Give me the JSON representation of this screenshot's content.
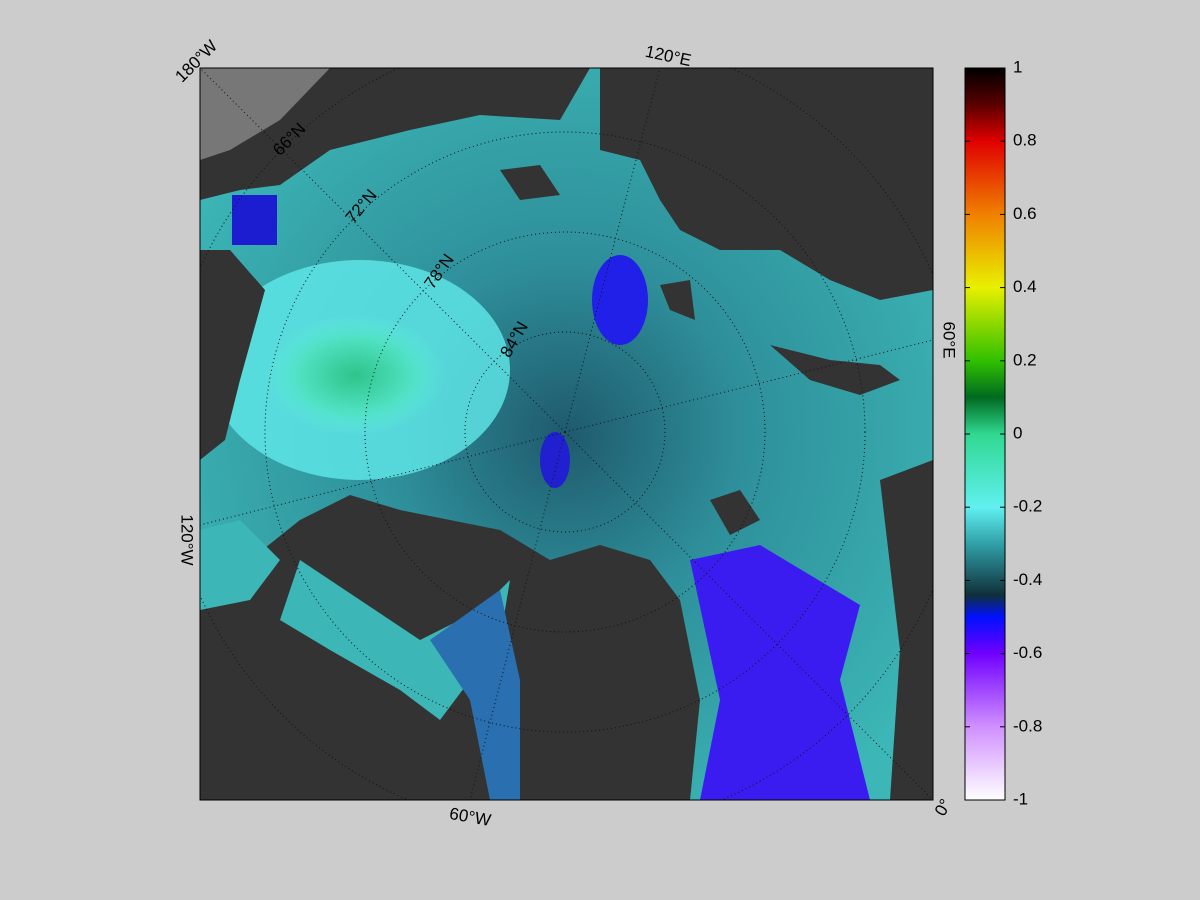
{
  "map": {
    "meridian_labels": [
      "180°W",
      "120°E",
      "60°E",
      "0°",
      "60°W",
      "120°W"
    ],
    "parallel_labels": [
      "66°N",
      "72°N",
      "78°N",
      "84°N"
    ]
  },
  "colorbar": {
    "lim": [
      -1,
      1
    ],
    "ticks": [
      1,
      0.8,
      0.6,
      0.4,
      0.2,
      0,
      -0.2,
      -0.4,
      -0.6,
      -0.8,
      -1
    ]
  }
}
